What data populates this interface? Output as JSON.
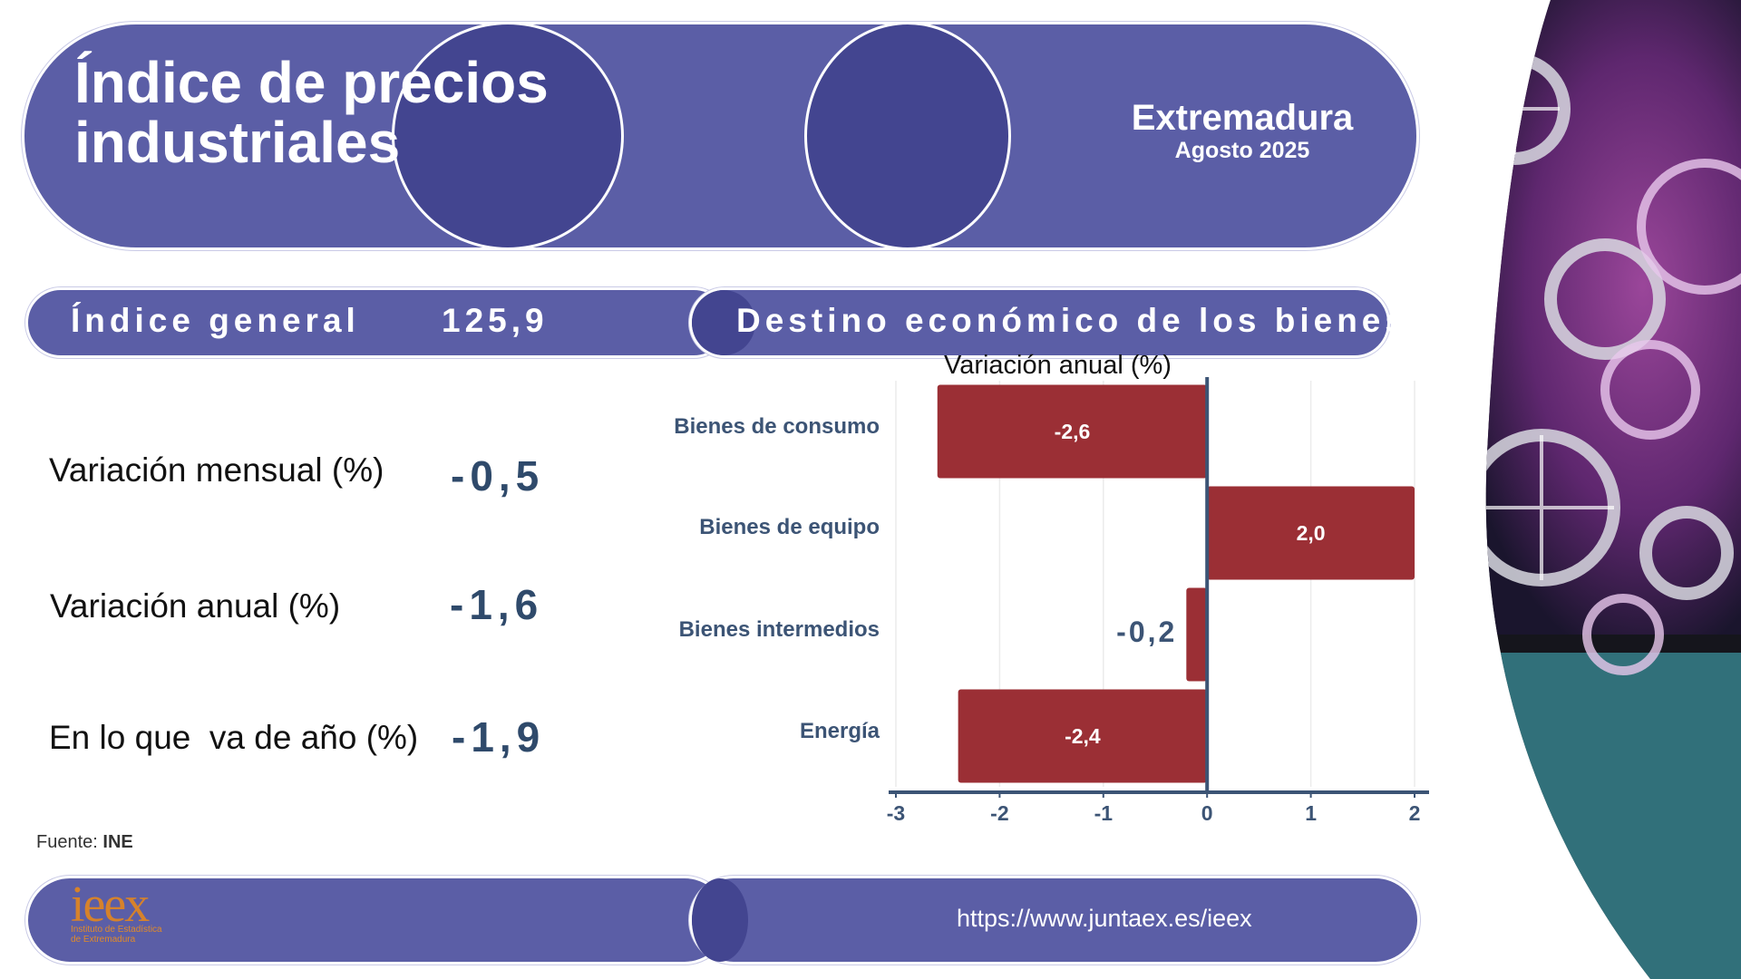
{
  "header": {
    "title_line1": "Índice de precios",
    "title_line2": "industriales",
    "region": "Extremadura",
    "period": "Agosto 2025"
  },
  "index_general": {
    "label": "Índice general",
    "value": "125,9"
  },
  "section_title": "Destino económico de los bienes",
  "metrics": [
    {
      "label": "Variación mensual (%)",
      "value": "-0,5"
    },
    {
      "label": "Variación anual (%)",
      "value": "-1,6"
    },
    {
      "label": "En lo que  va de año (%)",
      "value": "-1,9"
    }
  ],
  "source": {
    "prefix": "Fuente: ",
    "name": "INE"
  },
  "footer": {
    "logo_text": "ieex",
    "logo_sub1": "Instituto de Estadística",
    "logo_sub2": "de Extremadura",
    "url": "https://www.juntaex.es/ieex"
  },
  "colors": {
    "primary": "#5b5ea6",
    "bar": "#9b2f35",
    "axis": "#3c5475"
  },
  "chart_data": {
    "type": "bar",
    "orientation": "horizontal",
    "title": "Variación anual (%)",
    "categories": [
      "Bienes de consumo",
      "Bienes de equipo",
      "Bienes intermedios",
      "Energía"
    ],
    "values": [
      -2.6,
      2.0,
      -0.2,
      -2.4
    ],
    "labels": [
      "-2,6",
      "2,0",
      "-0,2",
      "-2,4"
    ],
    "xlim": [
      -3,
      2
    ],
    "xticks": [
      "-3",
      "-2",
      "-1",
      "0",
      "1",
      "2"
    ],
    "grid": true
  }
}
